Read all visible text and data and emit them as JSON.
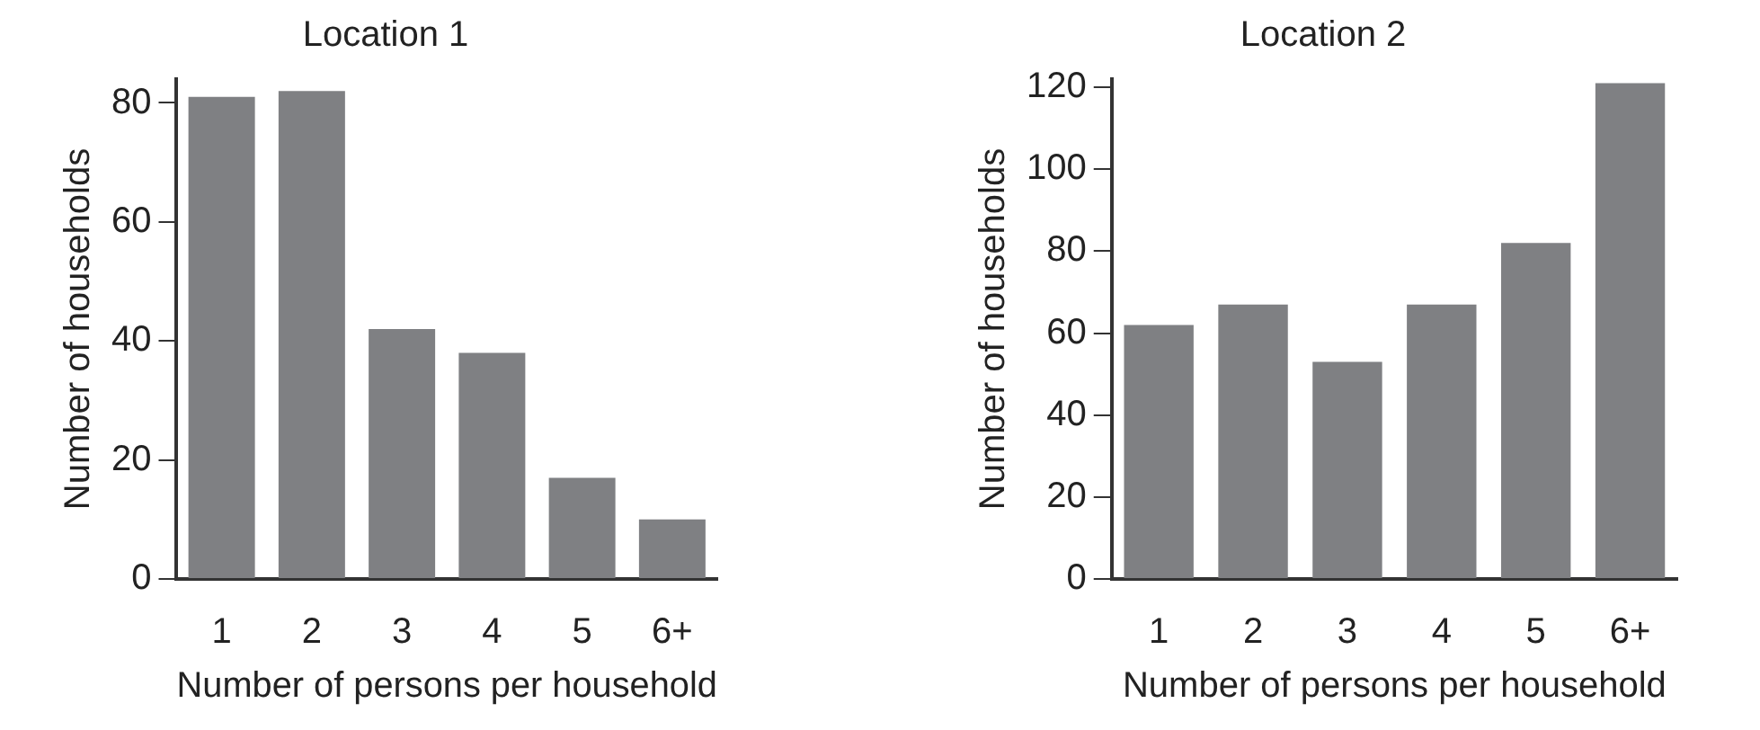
{
  "chart_data": [
    {
      "type": "bar",
      "title": "Location 1",
      "xlabel": "Number of persons per household",
      "ylabel": "Number of households",
      "categories": [
        "1",
        "2",
        "3",
        "4",
        "5",
        "6+"
      ],
      "values": [
        81,
        82,
        42,
        38,
        17,
        10
      ],
      "color": "#7f8083",
      "ylim": [
        0,
        84
      ],
      "yticks": [
        0,
        20,
        40,
        60,
        80
      ],
      "grid": false
    },
    {
      "type": "bar",
      "title": "Location 2",
      "xlabel": "Number of persons per household",
      "ylabel": "Number of households",
      "categories": [
        "1",
        "2",
        "3",
        "4",
        "5",
        "6+"
      ],
      "values": [
        62,
        67,
        53,
        67,
        82,
        121
      ],
      "color": "#7f8083",
      "ylim": [
        0,
        122
      ],
      "yticks": [
        0,
        20,
        40,
        60,
        80,
        100,
        120
      ],
      "grid": false
    }
  ]
}
